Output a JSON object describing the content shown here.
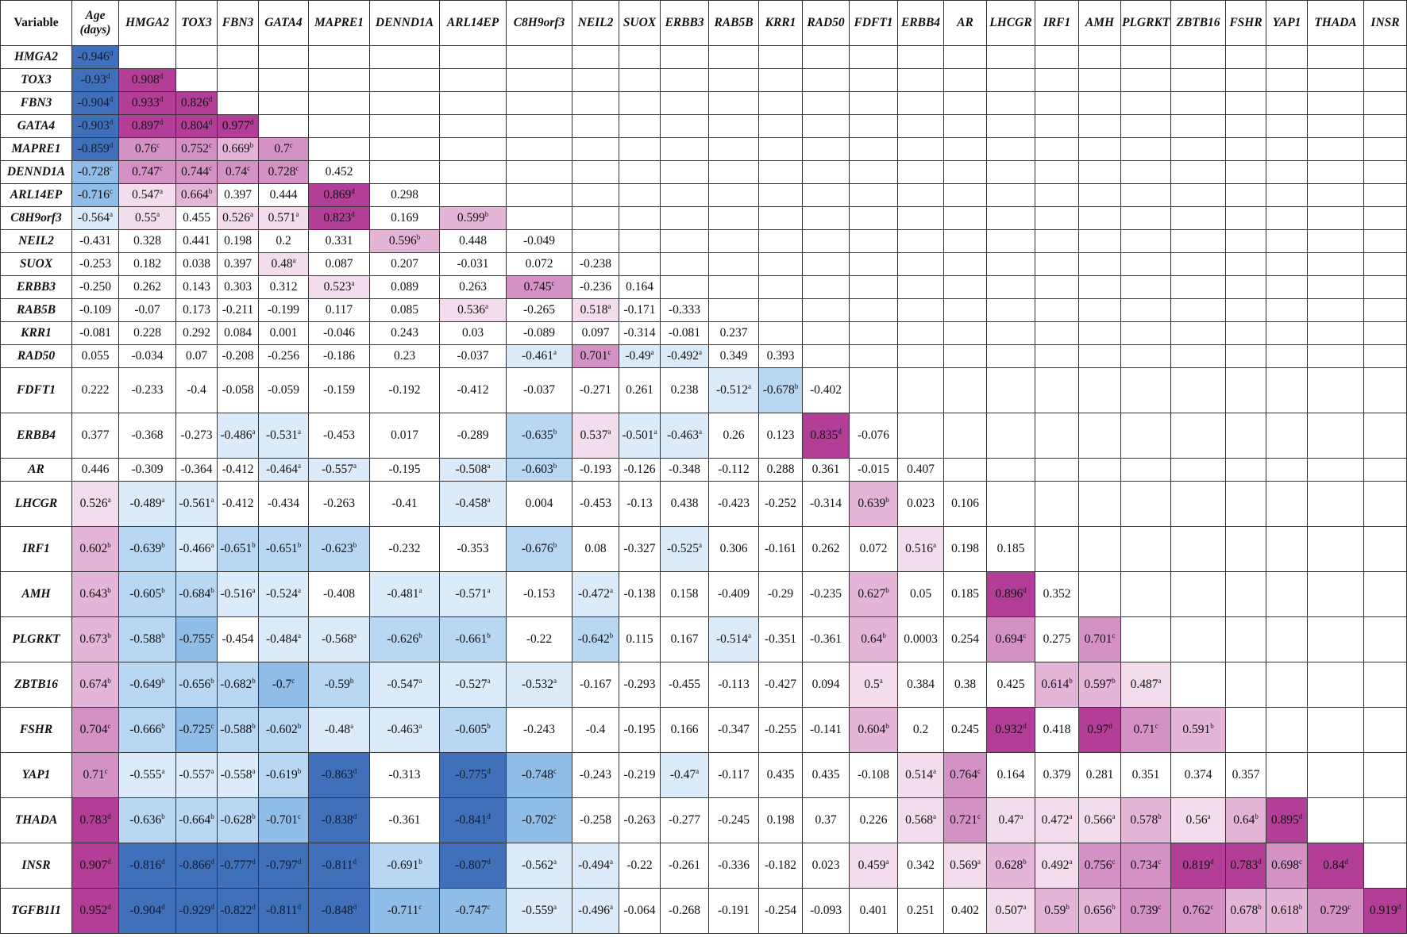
{
  "header": {
    "first": "Variable",
    "columns": [
      "Age (days)",
      "HMGA2",
      "TOX3",
      "FBN3",
      "GATA4",
      "MAPRE1",
      "DENND1A",
      "ARL14EP",
      "C8H9orf3",
      "NEIL2",
      "SUOX",
      "ERBB3",
      "RAB5B",
      "KRR1",
      "RAD50",
      "FDFT1",
      "ERBB4",
      "AR",
      "LHCGR",
      "IRF1",
      "AMH",
      "PLGRKT",
      "ZBTB16",
      "FSHR",
      "YAP1",
      "THADA",
      "INSR"
    ]
  },
  "palette": {
    "pos": {
      "a": "#f3dcec",
      "b": "#e4b5d7",
      "c": "#d392c3",
      "d": "#b23e97"
    },
    "neg": {
      "a": "#dcebf9",
      "b": "#b9d7f2",
      "c": "#8fbde8",
      "d": "#3f70b9"
    }
  },
  "rows": [
    {
      "label": "HMGA2",
      "tall": false,
      "values": [
        "-0.946"
      ],
      "sig": [
        "d"
      ]
    },
    {
      "label": "TOX3",
      "tall": false,
      "values": [
        "-0.93",
        "0.908"
      ],
      "sig": [
        "d",
        "d"
      ]
    },
    {
      "label": "FBN3",
      "tall": false,
      "values": [
        "-0.904",
        "0.933",
        "0.826"
      ],
      "sig": [
        "d",
        "d",
        "d"
      ]
    },
    {
      "label": "GATA4",
      "tall": false,
      "values": [
        "-0.903",
        "0.897",
        "0.804",
        "0.977"
      ],
      "sig": [
        "d",
        "d",
        "d",
        "d"
      ]
    },
    {
      "label": "MAPRE1",
      "tall": false,
      "values": [
        "-0.859",
        "0.76",
        "0.752",
        "0.669",
        "0.7"
      ],
      "sig": [
        "d",
        "c",
        "c",
        "b",
        "c"
      ]
    },
    {
      "label": "DENND1A",
      "tall": false,
      "values": [
        "-0.728",
        "0.747",
        "0.744",
        "0.74",
        "0.728",
        "0.452"
      ],
      "sig": [
        "c",
        "c",
        "c",
        "c",
        "c",
        ""
      ]
    },
    {
      "label": "ARL14EP",
      "tall": false,
      "values": [
        "-0.716",
        "0.547",
        "0.664",
        "0.397",
        "0.444",
        "0.869",
        "0.298"
      ],
      "sig": [
        "c",
        "a",
        "b",
        "",
        "",
        "d",
        ""
      ]
    },
    {
      "label": "C8H9orf3",
      "tall": false,
      "values": [
        "-0.564",
        "0.55",
        "0.455",
        "0.526",
        "0.571",
        "0.823",
        "0.169",
        "0.599"
      ],
      "sig": [
        "a",
        "a",
        "",
        "a",
        "a",
        "d",
        "",
        "b"
      ]
    },
    {
      "label": "NEIL2",
      "tall": false,
      "values": [
        "-0.431",
        "0.328",
        "0.441",
        "0.198",
        "0.2",
        "0.331",
        "0.596",
        "0.448",
        "-0.049"
      ],
      "sig": [
        "",
        "",
        "",
        "",
        "",
        "",
        "b",
        "",
        ""
      ]
    },
    {
      "label": "SUOX",
      "tall": false,
      "values": [
        "-0.253",
        "0.182",
        "0.038",
        "0.397",
        "0.48",
        "0.087",
        "0.207",
        "-0.031",
        "0.072",
        "-0.238"
      ],
      "sig": [
        "",
        "",
        "",
        "",
        "a",
        "",
        "",
        "",
        "",
        ""
      ]
    },
    {
      "label": "ERBB3",
      "tall": false,
      "values": [
        "-0.250",
        "0.262",
        "0.143",
        "0.303",
        "0.312",
        "0.523",
        "0.089",
        "0.263",
        "0.745",
        "-0.236",
        "0.164"
      ],
      "sig": [
        "",
        "",
        "",
        "",
        "",
        "a",
        "",
        "",
        "c",
        "",
        ""
      ]
    },
    {
      "label": "RAB5B",
      "tall": false,
      "values": [
        "-0.109",
        "-0.07",
        "0.173",
        "-0.211",
        "-0.199",
        "0.117",
        "0.085",
        "0.536",
        "-0.265",
        "0.518",
        "-0.171",
        "-0.333"
      ],
      "sig": [
        "",
        "",
        "",
        "",
        "",
        "",
        "",
        "a",
        "",
        "a",
        "",
        ""
      ]
    },
    {
      "label": "KRR1",
      "tall": false,
      "values": [
        "-0.081",
        "0.228",
        "0.292",
        "0.084",
        "0.001",
        "-0.046",
        "0.243",
        "0.03",
        "-0.089",
        "0.097",
        "-0.314",
        "-0.081",
        "0.237"
      ],
      "sig": [
        "",
        "",
        "",
        "",
        "",
        "",
        "",
        "",
        "",
        "",
        "",
        "",
        ""
      ]
    },
    {
      "label": "RAD50",
      "tall": false,
      "values": [
        "0.055",
        "-0.034",
        "0.07",
        "-0.208",
        "-0.256",
        "-0.186",
        "0.23",
        "-0.037",
        "-0.461",
        "0.701",
        "-0.49",
        "-0.492",
        "0.349",
        "0.393"
      ],
      "sig": [
        "",
        "",
        "",
        "",
        "",
        "",
        "",
        "",
        "a",
        "c",
        "a",
        "a",
        "",
        ""
      ]
    },
    {
      "label": "FDFT1",
      "tall": true,
      "values": [
        "0.222",
        "-0.233",
        "-0.4",
        "-0.058",
        "-0.059",
        "-0.159",
        "-0.192",
        "-0.412",
        "-0.037",
        "-0.271",
        "0.261",
        "0.238",
        "-0.512",
        "-0.678",
        "-0.402"
      ],
      "sig": [
        "",
        "",
        "",
        "",
        "",
        "",
        "",
        "",
        "",
        "",
        "",
        "",
        "a",
        "b",
        ""
      ]
    },
    {
      "label": "ERBB4",
      "tall": true,
      "values": [
        "0.377",
        "-0.368",
        "-0.273",
        "-0.486",
        "-0.531",
        "-0.453",
        "0.017",
        "-0.289",
        "-0.635",
        "0.537",
        "-0.501",
        "-0.463",
        "0.26",
        "0.123",
        "0.835",
        "-0.076"
      ],
      "sig": [
        "",
        "",
        "",
        "a",
        "a",
        "",
        "",
        "",
        "b",
        "a",
        "a",
        "a",
        "",
        "",
        "d",
        ""
      ]
    },
    {
      "label": "AR",
      "tall": false,
      "values": [
        "0.446",
        "-0.309",
        "-0.364",
        "-0.412",
        "-0.464",
        "-0.557",
        "-0.195",
        "-0.508",
        "-0.603",
        "-0.193",
        "-0.126",
        "-0.348",
        "-0.112",
        "0.288",
        "0.361",
        "-0.015",
        "0.407"
      ],
      "sig": [
        "",
        "",
        "",
        "",
        "a",
        "a",
        "",
        "a",
        "b",
        "",
        "",
        "",
        "",
        "",
        "",
        "",
        ""
      ]
    },
    {
      "label": "LHCGR",
      "tall": true,
      "values": [
        "0.526",
        "-0.489",
        "-0.561",
        "-0.412",
        "-0.434",
        "-0.263",
        "-0.41",
        "-0.458",
        "0.004",
        "-0.453",
        "-0.13",
        "0.438",
        "-0.423",
        "-0.252",
        "-0.314",
        "0.639",
        "0.023",
        "0.106"
      ],
      "sig": [
        "a",
        "a",
        "a",
        "",
        "",
        "",
        "",
        "a",
        "",
        "",
        "",
        "",
        "",
        "",
        "",
        "b",
        "",
        ""
      ]
    },
    {
      "label": "IRF1",
      "tall": true,
      "values": [
        "0.602",
        "-0.639",
        "-0.466",
        "-0.651",
        "-0.651",
        "-0.623",
        "-0.232",
        "-0.353",
        "-0.676",
        "0.08",
        "-0.327",
        "-0.525",
        "0.306",
        "-0.161",
        "0.262",
        "0.072",
        "0.516",
        "0.198",
        "0.185"
      ],
      "sig": [
        "b",
        "b",
        "a",
        "b",
        "b",
        "b",
        "",
        "",
        "b",
        "",
        "",
        "a",
        "",
        "",
        "",
        "",
        "a",
        "",
        ""
      ]
    },
    {
      "label": "AMH",
      "tall": true,
      "values": [
        "0.643",
        "-0.605",
        "-0.684",
        "-0.516",
        "-0.524",
        "-0.408",
        "-0.481",
        "-0.571",
        "-0.153",
        "-0.472",
        "-0.138",
        "0.158",
        "-0.409",
        "-0.29",
        "-0.235",
        "0.627",
        "0.05",
        "0.185",
        "0.896",
        "0.352"
      ],
      "sig": [
        "b",
        "b",
        "b",
        "a",
        "a",
        "",
        "a",
        "a",
        "",
        "a",
        "",
        "",
        "",
        "",
        "",
        "b",
        "",
        "",
        "d",
        ""
      ]
    },
    {
      "label": "PLGRKT",
      "tall": true,
      "values": [
        "0.673",
        "-0.588",
        "-0.755",
        "-0.454",
        "-0.484",
        "-0.568",
        "-0.626",
        "-0.661",
        "-0.22",
        "-0.642",
        "0.115",
        "0.167",
        "-0.514",
        "-0.351",
        "-0.361",
        "0.64",
        "0.0003",
        "0.254",
        "0.694",
        "0.275",
        "0.701"
      ],
      "sig": [
        "b",
        "b",
        "c",
        "",
        "a",
        "a",
        "b",
        "b",
        "",
        "b",
        "",
        "",
        "a",
        "",
        "",
        "b",
        "",
        "",
        "c",
        "",
        "c"
      ]
    },
    {
      "label": "ZBTB16",
      "tall": true,
      "values": [
        "0.674",
        "-0.649",
        "-0.656",
        "-0.682",
        "-0.7",
        "-0.59",
        "-0.547",
        "-0.527",
        "-0.532",
        "-0.167",
        "-0.293",
        "-0.455",
        "-0.113",
        "-0.427",
        "0.094",
        "0.5",
        "0.384",
        "0.38",
        "0.425",
        "0.614",
        "0.597",
        "0.487"
      ],
      "sig": [
        "b",
        "b",
        "b",
        "b",
        "c",
        "b",
        "a",
        "a",
        "a",
        "",
        "",
        "",
        "",
        "",
        "",
        "a",
        "",
        "",
        "",
        "b",
        "b",
        "a"
      ]
    },
    {
      "label": "FSHR",
      "tall": true,
      "values": [
        "0.704",
        "-0.666",
        "-0.725",
        "-0.588",
        "-0.602",
        "-0.48",
        "-0.463",
        "-0.605",
        "-0.243",
        "-0.4",
        "-0.195",
        "0.166",
        "-0.347",
        "-0.255",
        "-0.141",
        "0.604",
        "0.2",
        "0.245",
        "0.932",
        "0.418",
        "0.97",
        "0.71",
        "0.591"
      ],
      "sig": [
        "c",
        "b",
        "c",
        "b",
        "b",
        "a",
        "a",
        "b",
        "",
        "",
        "",
        "",
        "",
        "",
        "",
        "b",
        "",
        "",
        "d",
        "",
        "d",
        "c",
        "b"
      ]
    },
    {
      "label": "YAP1",
      "tall": true,
      "values": [
        "0.71",
        "-0.555",
        "-0.557",
        "-0.558",
        "-0.619",
        "-0.863",
        "-0.313",
        "-0.775",
        "-0.748",
        "-0.243",
        "-0.219",
        "-0.47",
        "-0.117",
        "0.435",
        "0.435",
        "-0.108",
        "0.514",
        "0.764",
        "0.164",
        "0.379",
        "0.281",
        "0.351",
        "0.374",
        "0.357"
      ],
      "sig": [
        "c",
        "a",
        "a",
        "a",
        "b",
        "d",
        "",
        "d",
        "c",
        "",
        "",
        "a",
        "",
        "",
        "",
        "",
        "a",
        "c",
        "",
        "",
        "",
        "",
        "",
        ""
      ]
    },
    {
      "label": "THADA",
      "tall": true,
      "values": [
        "0.783",
        "-0.636",
        "-0.664",
        "-0.628",
        "-0.701",
        "-0.838",
        "-0.361",
        "-0.841",
        "-0.702",
        "-0.258",
        "-0.263",
        "-0.277",
        "-0.245",
        "0.198",
        "0.37",
        "0.226",
        "0.568",
        "0.721",
        "0.47",
        "0.472",
        "0.566",
        "0.578",
        "0.56",
        "0.64",
        "0.895"
      ],
      "sig": [
        "d",
        "b",
        "b",
        "b",
        "c",
        "d",
        "",
        "d",
        "c",
        "",
        "",
        "",
        "",
        "",
        "",
        "",
        "a",
        "c",
        "a",
        "a",
        "a",
        "b",
        "a",
        "b",
        "d"
      ]
    },
    {
      "label": "INSR",
      "tall": true,
      "values": [
        "0.907",
        "-0.816",
        "-0.866",
        "-0.777",
        "-0.797",
        "-0.811",
        "-0.691",
        "-0.807",
        "-0.562",
        "-0.494",
        "-0.22",
        "-0.261",
        "-0.336",
        "-0.182",
        "0.023",
        "0.459",
        "0.342",
        "0.569",
        "0.628",
        "0.492",
        "0.756",
        "0.734",
        "0.819",
        "0.783",
        "0.698",
        "0.84"
      ],
      "sig": [
        "d",
        "d",
        "d",
        "d",
        "d",
        "d",
        "b",
        "d",
        "a",
        "a",
        "",
        "",
        "",
        "",
        "",
        "a",
        "",
        "a",
        "b",
        "a",
        "c",
        "c",
        "d",
        "d",
        "c",
        "d"
      ]
    },
    {
      "label": "TGFB1I1",
      "tall": true,
      "values": [
        "0.952",
        "-0.904",
        "-0.929",
        "-0.822",
        "-0.811",
        "-0.848",
        "-0.711",
        "-0.747",
        "-0.559",
        "-0.496",
        "-0.064",
        "-0.268",
        "-0.191",
        "-0.254",
        "-0.093",
        "0.401",
        "0.251",
        "0.402",
        "0.507",
        "0.59",
        "0.656",
        "0.739",
        "0.762",
        "0.678",
        "0.618",
        "0.729",
        "0.919"
      ],
      "sig": [
        "d",
        "d",
        "d",
        "d",
        "d",
        "d",
        "c",
        "c",
        "a",
        "a",
        "",
        "",
        "",
        "",
        "",
        "",
        "",
        "",
        "a",
        "b",
        "b",
        "c",
        "c",
        "b",
        "b",
        "c",
        "d"
      ]
    }
  ]
}
